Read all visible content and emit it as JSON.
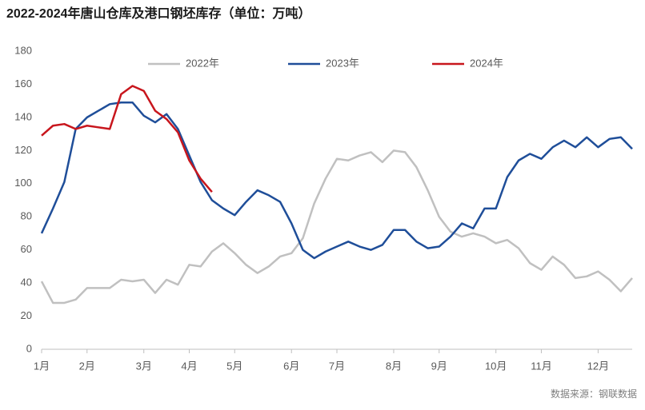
{
  "chart_data": {
    "type": "line",
    "title": "2022-2024年唐山仓库及港口钢坯库存（单位：万吨）",
    "source": "数据来源：钢联数据",
    "categories": [
      "1月",
      null,
      null,
      null,
      "2月",
      null,
      null,
      null,
      null,
      "3月",
      null,
      null,
      null,
      "4月",
      null,
      null,
      null,
      "5月",
      null,
      null,
      null,
      null,
      "6月",
      null,
      null,
      null,
      "7月",
      null,
      null,
      null,
      null,
      "8月",
      null,
      null,
      null,
      "9月",
      null,
      null,
      null,
      null,
      "10月",
      null,
      null,
      null,
      "11月",
      null,
      null,
      null,
      null,
      "12月",
      null,
      null,
      null
    ],
    "series": [
      {
        "name": "2022年",
        "color": "#c0c0c0",
        "values": [
          41,
          28,
          28,
          30,
          37,
          37,
          37,
          42,
          41,
          42,
          34,
          42,
          39,
          51,
          50,
          59,
          64,
          58,
          51,
          46,
          50,
          56,
          58,
          67,
          88,
          103,
          115,
          114,
          117,
          119,
          113,
          120,
          119,
          110,
          96,
          80,
          71,
          68,
          70,
          68,
          64,
          66,
          61,
          52,
          48,
          56,
          51,
          43,
          44,
          47,
          42,
          35,
          43
        ]
      },
      {
        "name": "2023年",
        "color": "#1f4e99",
        "values": [
          70,
          85,
          101,
          133,
          140,
          144,
          148,
          149,
          149,
          141,
          137,
          142,
          133,
          117,
          101,
          90,
          85,
          81,
          89,
          96,
          93,
          89,
          76,
          60,
          55,
          59,
          62,
          65,
          62,
          60,
          63,
          72,
          72,
          65,
          61,
          62,
          68,
          76,
          73,
          85,
          85,
          104,
          114,
          118,
          115,
          122,
          126,
          122,
          128,
          122,
          127,
          128,
          121
        ]
      },
      {
        "name": "2024年",
        "color": "#c8161d",
        "values": [
          129,
          135,
          136,
          133,
          135,
          134,
          133,
          154,
          159,
          156,
          144,
          139,
          131,
          114,
          103,
          95,
          null,
          null,
          null,
          null,
          null,
          null,
          null,
          null,
          null,
          null,
          null,
          null,
          null,
          null,
          null,
          null,
          null,
          null,
          null,
          null,
          null,
          null,
          null,
          null,
          null,
          null,
          null,
          null,
          null,
          null,
          null,
          null,
          null,
          null,
          null,
          null,
          null
        ]
      }
    ],
    "ylim": [
      0,
      180
    ],
    "yticks": [
      0,
      20,
      40,
      60,
      80,
      100,
      120,
      140,
      160,
      180
    ],
    "grid": false,
    "legend": "top"
  }
}
